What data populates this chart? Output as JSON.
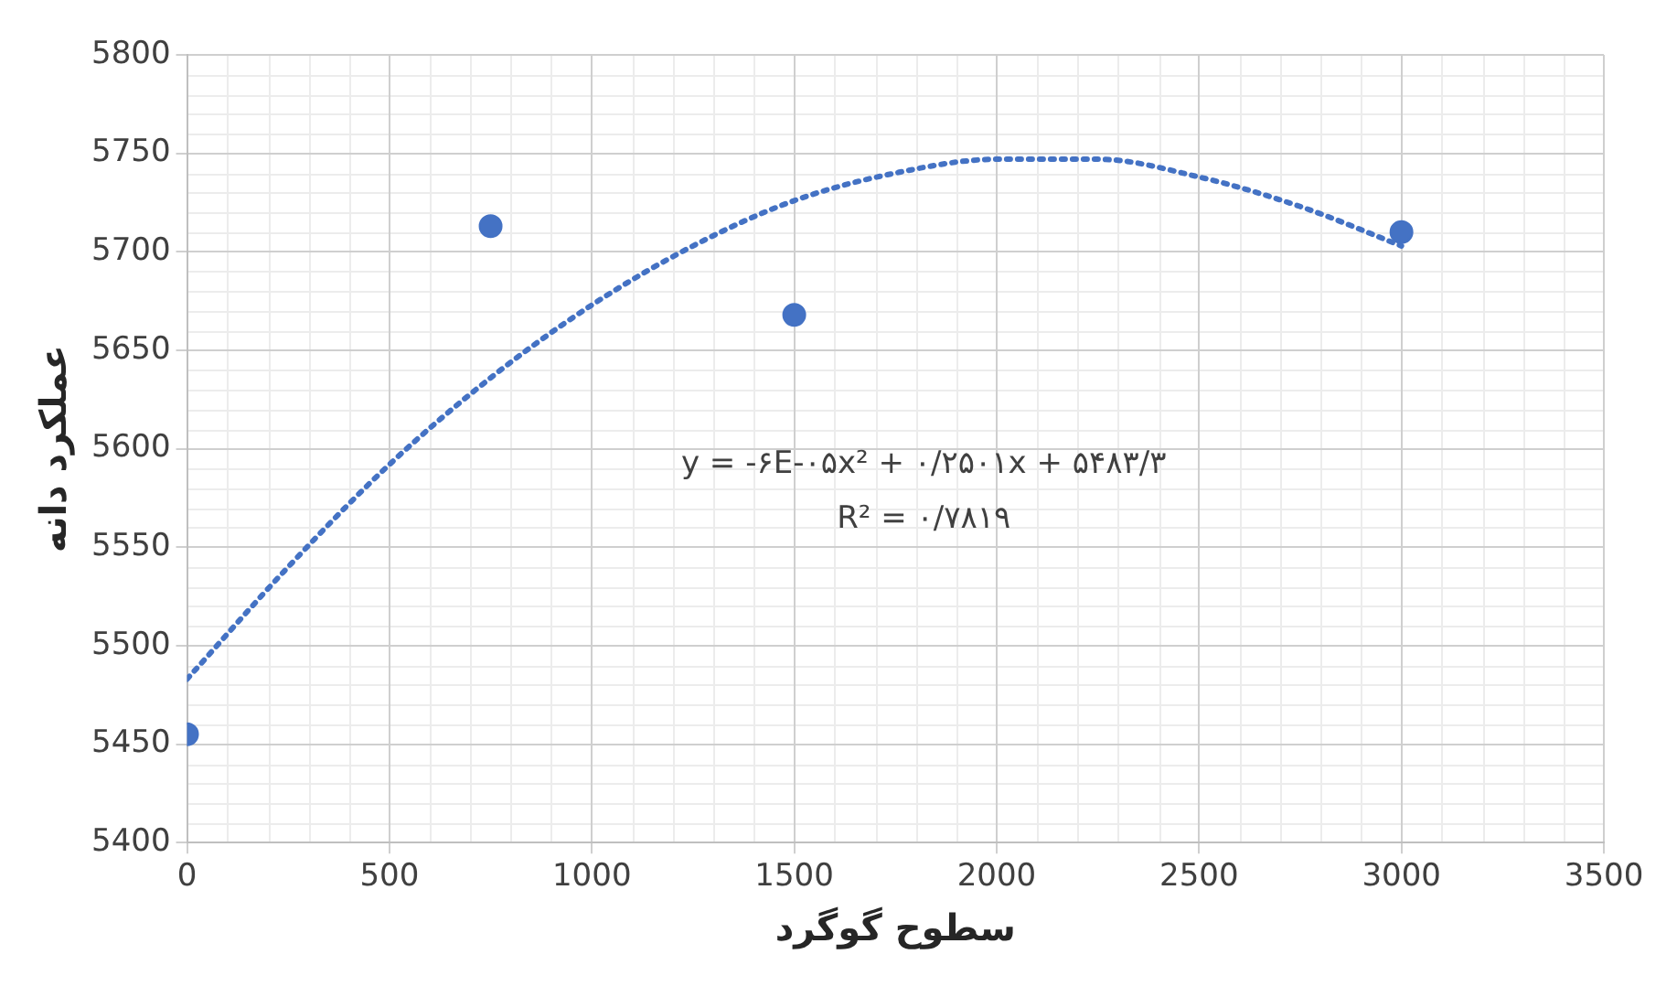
{
  "chart_data": {
    "type": "scatter",
    "xlabel": "سطوح گوگرد",
    "ylabel": "عملکرد دانه",
    "xlim": [
      0,
      3500
    ],
    "xticks": [
      0,
      500,
      1000,
      1500,
      2000,
      2500,
      3000,
      3500
    ],
    "ylim": [
      5400,
      5800
    ],
    "yticks": [
      5400,
      5450,
      5500,
      5550,
      5600,
      5650,
      5700,
      5750,
      5800
    ],
    "grid": true,
    "legend": false,
    "marker": "circle",
    "series": [
      {
        "color": "#4472c4",
        "x": [
          0,
          750,
          1500,
          3000
        ],
        "values": [
          5455,
          5713,
          5668,
          5710
        ]
      },
      {
        "type": "line",
        "color": "#4472c4",
        "marker": "none",
        "line_style": "dotted",
        "x": [
          0,
          250,
          500,
          750,
          1000,
          1250,
          1500,
          1750,
          2000,
          2250,
          2500,
          2750,
          3000
        ],
        "values": [
          5483,
          5540,
          5592,
          5636,
          5673,
          5703,
          5726,
          5740,
          5747,
          5747,
          5738,
          5723,
          5703
        ]
      }
    ],
    "annotations": [
      "y = -۶E-۰۵x² + ۰/۲۵۰۱x + ۵۴۸۳/۳\nR² = ۰/۷۸۱۹"
    ]
  }
}
